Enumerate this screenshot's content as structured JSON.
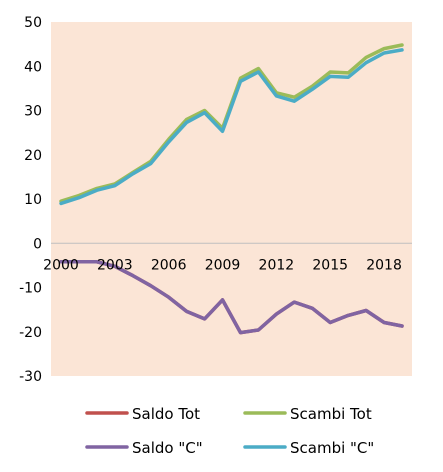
{
  "chart_data": {
    "type": "line",
    "x": [
      2000,
      2001,
      2002,
      2003,
      2004,
      2005,
      2006,
      2007,
      2008,
      2009,
      2010,
      2011,
      2012,
      2013,
      2014,
      2015,
      2016,
      2017,
      2018,
      2019
    ],
    "x_tick_labels": [
      "2000",
      "2003",
      "2006",
      "2009",
      "2012",
      "2015",
      "2018"
    ],
    "y_tick_labels": [
      "50",
      "40",
      "30",
      "20",
      "10",
      "0",
      "-10",
      "-20",
      "-30"
    ],
    "ylim": [
      -30,
      50
    ],
    "grid": false,
    "plot_background": "#fbe5d6",
    "legend_position": "bottom",
    "series": [
      {
        "name": "Saldo Tot",
        "color": "#c0504d",
        "values": [
          -4.2,
          -4.2,
          -4.2,
          -5.2,
          -7.3,
          -9.6,
          -12.2,
          -15.4,
          -17.1,
          -12.8,
          -20.2,
          -19.6,
          -16.0,
          -13.3,
          -14.7,
          -17.9,
          -16.3,
          -15.2,
          -17.9,
          -18.7
        ]
      },
      {
        "name": "Scambi Tot",
        "color": "#9bbb59",
        "values": [
          9.5,
          10.8,
          12.4,
          13.4,
          16.0,
          18.5,
          23.5,
          28.0,
          30.0,
          26.0,
          37.3,
          39.5,
          34.0,
          33.0,
          35.5,
          38.7,
          38.5,
          42.0,
          44.0,
          44.8
        ]
      },
      {
        "name": "Saldo \"C\"",
        "color": "#8064a2",
        "values": [
          -4.2,
          -4.2,
          -4.2,
          -5.2,
          -7.3,
          -9.6,
          -12.2,
          -15.4,
          -17.1,
          -12.8,
          -20.2,
          -19.6,
          -16.0,
          -13.3,
          -14.7,
          -17.9,
          -16.3,
          -15.2,
          -17.9,
          -18.7
        ]
      },
      {
        "name": "Scambi \"C\"",
        "color": "#4bacc6",
        "values": [
          9.0,
          10.3,
          12.0,
          13.0,
          15.7,
          18.0,
          22.9,
          27.3,
          29.5,
          25.3,
          36.6,
          38.7,
          33.3,
          32.1,
          34.8,
          37.7,
          37.5,
          40.8,
          43.0,
          43.7
        ]
      }
    ]
  }
}
